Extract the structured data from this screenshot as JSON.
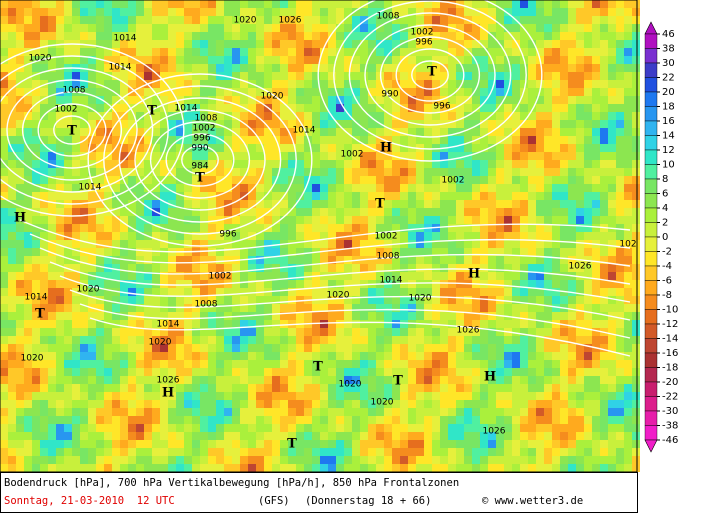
{
  "map": {
    "labels": [
      "1020",
      "1026",
      "1008",
      "1014",
      "1002",
      "996",
      "1020",
      "1014",
      "T",
      "1008",
      "T",
      "1014",
      "1020",
      "990",
      "996",
      "1002",
      "T",
      "1008",
      "1002",
      "996",
      "990",
      "1014",
      "H",
      "1002",
      "984",
      "T",
      "1002",
      "1014",
      "T",
      "H",
      "996",
      "1002",
      "102",
      "1008",
      "1026",
      "H",
      "1014",
      "1002",
      "1020",
      "1014",
      "1020",
      "1020",
      "1008",
      "T",
      "1014",
      "1026",
      "1020",
      "1020",
      "T",
      "T",
      "1026",
      "H",
      "H",
      "1020",
      "1020",
      "1026",
      "T"
    ]
  },
  "colorbar": {
    "ticks": [
      46,
      38,
      30,
      22,
      20,
      18,
      16,
      14,
      12,
      10,
      8,
      6,
      4,
      2,
      0,
      -2,
      -4,
      -6,
      -8,
      -10,
      -12,
      -14,
      -16,
      -18,
      -20,
      -22,
      -30,
      -38,
      -46
    ],
    "colors": [
      "#b010c0",
      "#7a30d0",
      "#3c3cc8",
      "#2050e0",
      "#1e78f0",
      "#2896f0",
      "#30b4f0",
      "#30d2e6",
      "#30e6c8",
      "#50f0a0",
      "#78e664",
      "#8ce650",
      "#aaf03c",
      "#c8f03c",
      "#e6f03c",
      "#ffe628",
      "#ffc828",
      "#ffaa1e",
      "#f58c1e",
      "#e66e1e",
      "#d25a28",
      "#be4632",
      "#aa3232",
      "#b42850",
      "#c81e6e",
      "#dc1e8c",
      "#e61eaa",
      "#f01ec8"
    ]
  },
  "footer": {
    "caption": "Bodendruck [hPa], 700 hPa Vertikalbewegung [hPa/h], 850 hPa Frontalzonen",
    "date": "Sonntag, 21-03-2010  12 UTC",
    "model": "(GFS)",
    "forecast": "(Donnerstag 18 + 66)",
    "credit": "© www.wetter3.de"
  }
}
